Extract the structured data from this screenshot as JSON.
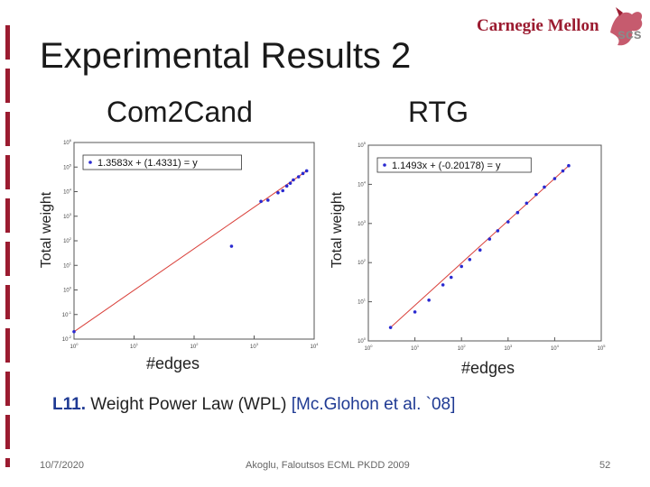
{
  "slide": {
    "title": "Experimental Results 2",
    "logo_text": "Carnegie Mellon",
    "logo_mark": "scs",
    "left_title": "Com2Cand",
    "right_title": "RTG",
    "caption_label": "L11.",
    "caption_text": "Weight Power Law  (WPL)",
    "caption_cite": "[Mc.Glohon et al. `08]",
    "footer_date": "10/7/2020",
    "footer_center": "Akoglu, Faloutsos ECML PKDD 2009",
    "footer_page": "52",
    "colors": {
      "accent_red": "#9b1b30",
      "fit_line": "#d9403a",
      "points": "#2a2ad0",
      "cite_blue": "#1f3a93"
    }
  },
  "chart_data": [
    {
      "type": "scatter",
      "title": "",
      "xlabel": "#edges",
      "ylabel": "Total weight",
      "x_scale": "log",
      "y_scale": "log",
      "xlim": [
        1,
        10000
      ],
      "ylim": [
        0.01,
        1000000
      ],
      "legend": "1.3583x + (1.4331) = y",
      "legend_position": "top",
      "points": [
        [
          1,
          0.02
        ],
        [
          420,
          60
        ],
        [
          1300,
          4000
        ],
        [
          1700,
          4500
        ],
        [
          2500,
          9000
        ],
        [
          3000,
          11000
        ],
        [
          3500,
          17000
        ],
        [
          4000,
          22000
        ],
        [
          4500,
          30000
        ],
        [
          5500,
          40000
        ],
        [
          6500,
          55000
        ],
        [
          7500,
          70000
        ]
      ]
    },
    {
      "type": "scatter",
      "title": "",
      "xlabel": "#edges",
      "ylabel": "Total weight",
      "x_scale": "log",
      "y_scale": "log",
      "xlim": [
        1,
        100000
      ],
      "ylim": [
        1,
        100000
      ],
      "legend": "1.1493x + (-0.20178) = y",
      "legend_position": "top",
      "points": [
        [
          3,
          2.2
        ],
        [
          10,
          5.5
        ],
        [
          20,
          11
        ],
        [
          40,
          27
        ],
        [
          60,
          42
        ],
        [
          100,
          80
        ],
        [
          150,
          120
        ],
        [
          250,
          210
        ],
        [
          400,
          400
        ],
        [
          600,
          650
        ],
        [
          1000,
          1100
        ],
        [
          1600,
          1900
        ],
        [
          2500,
          3300
        ],
        [
          4000,
          5500
        ],
        [
          6000,
          8500
        ],
        [
          10000,
          14000
        ],
        [
          15000,
          22000
        ],
        [
          20000,
          30000
        ]
      ]
    }
  ]
}
